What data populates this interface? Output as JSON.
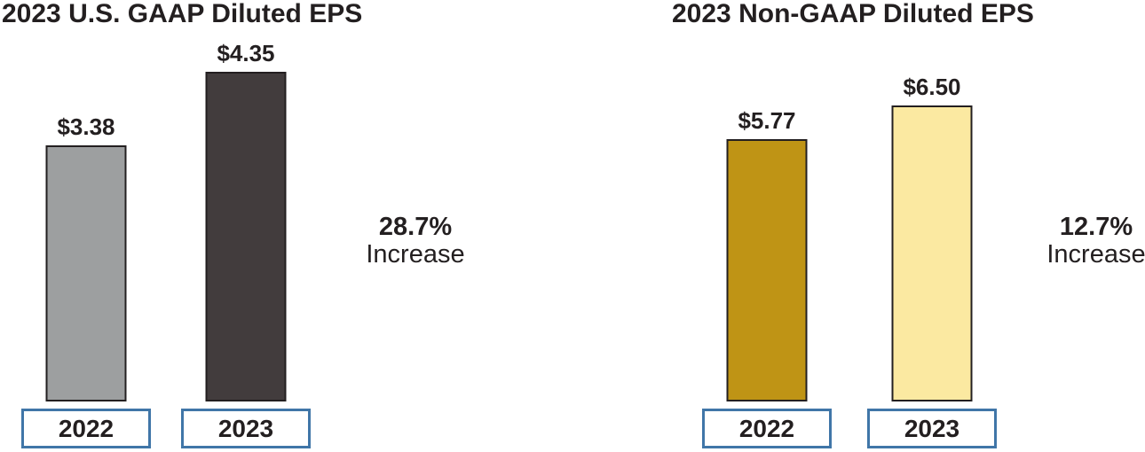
{
  "colors": {
    "text": "#231f20",
    "bar-border": "#231f20",
    "year-box-border": "#4076a8",
    "year-box-bg": "#ffffff",
    "background": "#ffffff"
  },
  "chart_data": [
    {
      "type": "bar",
      "title": "2023 U.S. GAAP Diluted EPS",
      "categories": [
        "2022",
        "2023"
      ],
      "values": [
        3.38,
        4.35
      ],
      "value_labels": [
        "$3.38",
        "$4.35"
      ],
      "bar_colors": [
        "#9d9fa0",
        "#423c3d"
      ],
      "annotation": {
        "percent": "28.7%",
        "label": "Increase"
      },
      "xlabel": "",
      "ylabel": "",
      "ylim": [
        0,
        4.35
      ],
      "grid": false,
      "axes_shown": false,
      "legend": "none"
    },
    {
      "type": "bar",
      "title": "2023 Non-GAAP Diluted EPS",
      "categories": [
        "2022",
        "2023"
      ],
      "values": [
        5.77,
        6.5
      ],
      "value_labels": [
        "$5.77",
        "$6.50"
      ],
      "bar_colors": [
        "#bf9415",
        "#fbe9a1"
      ],
      "annotation": {
        "percent": "12.7%",
        "label": "Increase"
      },
      "xlabel": "",
      "ylabel": "",
      "ylim": [
        0,
        6.5
      ],
      "grid": false,
      "axes_shown": false,
      "legend": "none"
    }
  ]
}
